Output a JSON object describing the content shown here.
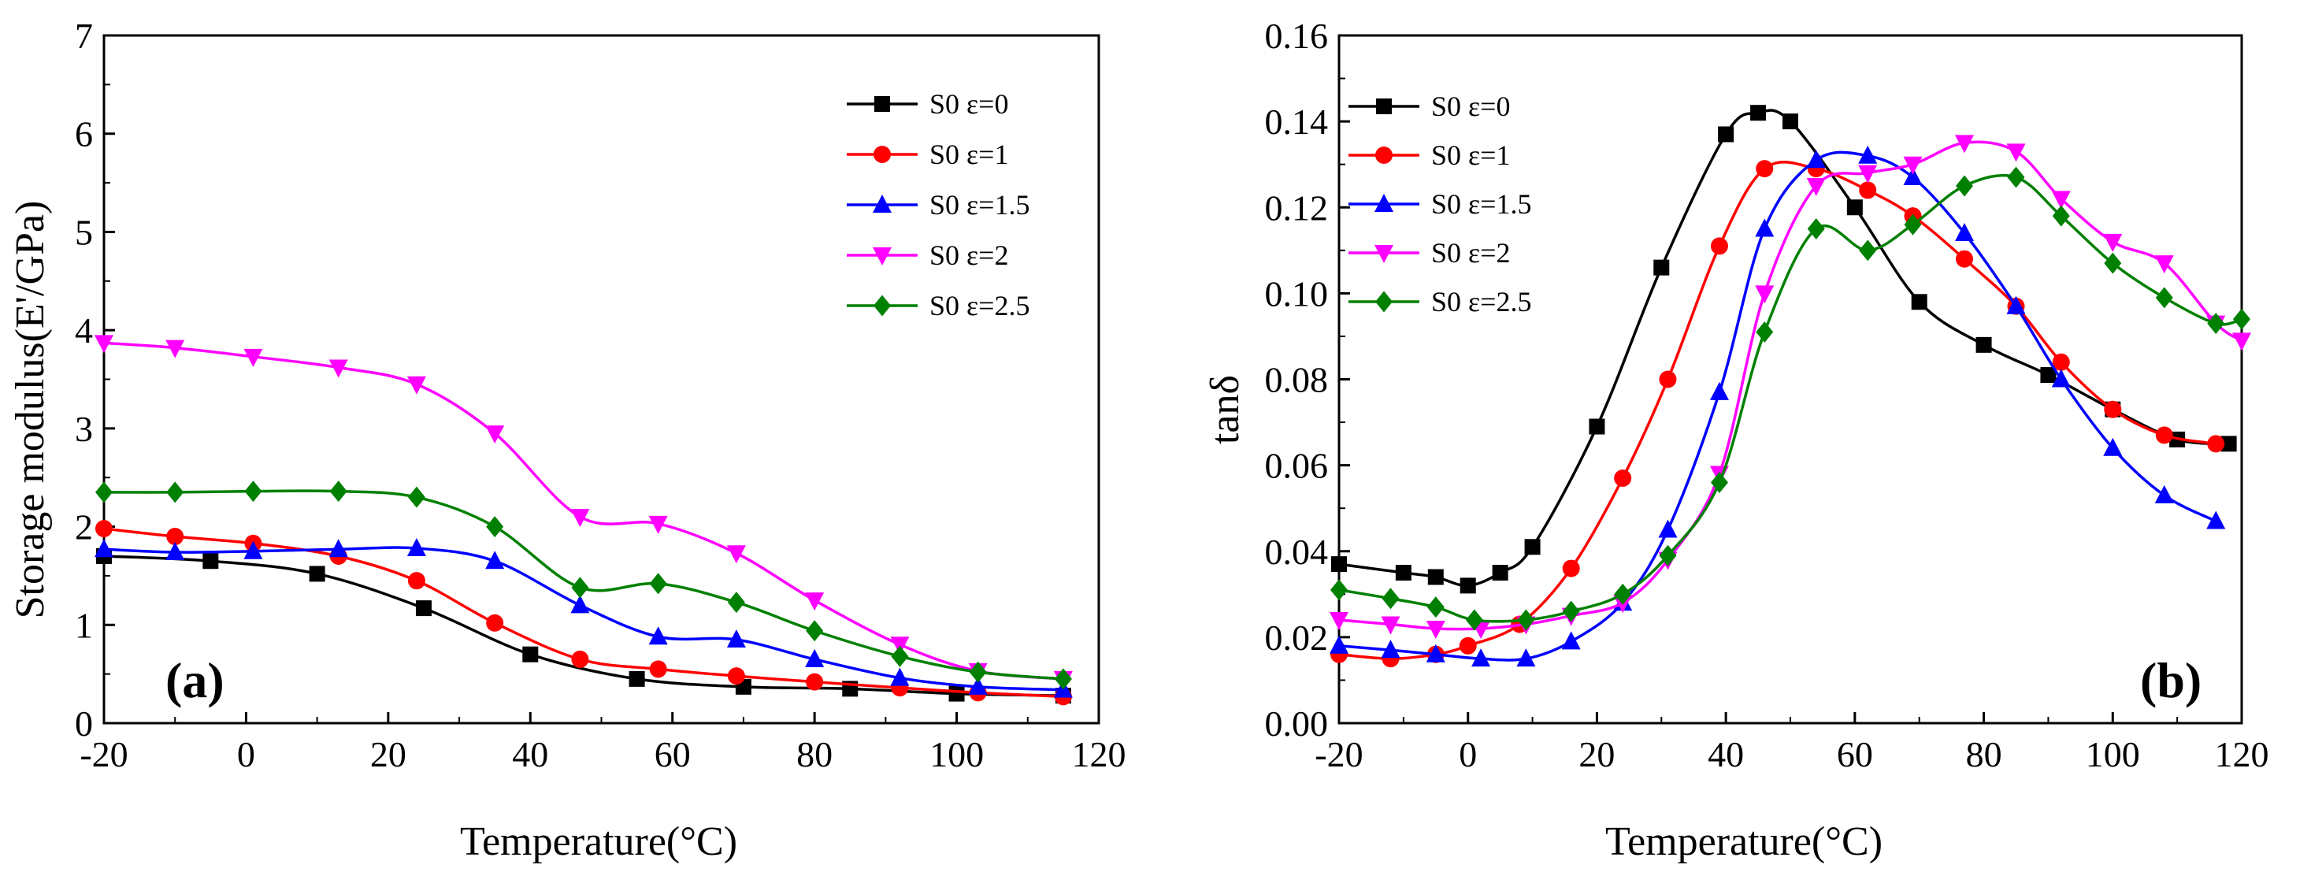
{
  "chart_data": [
    {
      "type": "line",
      "panel_label": "(a)",
      "xlabel": "Temperature(°C)",
      "ylabel": "Storage modulus(E'/GPa)",
      "xlim": [
        -20,
        120
      ],
      "ylim": [
        0,
        7
      ],
      "xticks": [
        -20,
        0,
        20,
        40,
        60,
        80,
        100,
        120
      ],
      "yticks": [
        0,
        1,
        2,
        3,
        4,
        5,
        6,
        7
      ],
      "xtick_labels": [
        "-20",
        "0",
        "20",
        "40",
        "60",
        "80",
        "100",
        "120"
      ],
      "ytick_labels": [
        "0",
        "1",
        "2",
        "3",
        "4",
        "5",
        "6",
        "7"
      ],
      "legend_position": "top-right",
      "series": [
        {
          "name": "S0 ε=0",
          "color": "#000000",
          "marker": "square",
          "x": [
            -20,
            -5,
            10,
            25,
            40,
            55,
            70,
            85,
            100,
            115
          ],
          "y": [
            1.7,
            1.65,
            1.52,
            1.17,
            0.7,
            0.45,
            0.37,
            0.35,
            0.3,
            0.28
          ]
        },
        {
          "name": "S0 ε=1",
          "color": "#ff0000",
          "marker": "circle",
          "x": [
            -20,
            -10,
            1,
            13,
            24,
            35,
            47,
            58,
            69,
            80,
            92,
            103,
            115
          ],
          "y": [
            1.98,
            1.9,
            1.83,
            1.7,
            1.45,
            1.02,
            0.65,
            0.55,
            0.48,
            0.42,
            0.36,
            0.31,
            0.27
          ]
        },
        {
          "name": "S0 ε=1.5",
          "color": "#0000ff",
          "marker": "triangle-up",
          "x": [
            -20,
            -10,
            1,
            13,
            24,
            35,
            47,
            58,
            69,
            80,
            92,
            103,
            115
          ],
          "y": [
            1.77,
            1.74,
            1.75,
            1.77,
            1.78,
            1.65,
            1.2,
            0.88,
            0.85,
            0.65,
            0.46,
            0.37,
            0.34
          ]
        },
        {
          "name": "S0 ε=2",
          "color": "#ff00ff",
          "marker": "triangle-down",
          "x": [
            -20,
            -10,
            1,
            13,
            24,
            35,
            47,
            58,
            69,
            80,
            92,
            103,
            115
          ],
          "y": [
            3.87,
            3.82,
            3.73,
            3.62,
            3.45,
            2.95,
            2.1,
            2.03,
            1.73,
            1.25,
            0.8,
            0.53,
            0.45
          ]
        },
        {
          "name": "S0 ε=2.5",
          "color": "#008000",
          "marker": "diamond",
          "x": [
            -20,
            -10,
            1,
            13,
            24,
            35,
            47,
            58,
            69,
            80,
            92,
            103,
            115
          ],
          "y": [
            2.35,
            2.35,
            2.36,
            2.36,
            2.3,
            2.0,
            1.38,
            1.42,
            1.23,
            0.94,
            0.68,
            0.52,
            0.45
          ]
        }
      ]
    },
    {
      "type": "line",
      "panel_label": "(b)",
      "xlabel": "Temperature(°C)",
      "ylabel": "tanδ",
      "xlim": [
        -20,
        120
      ],
      "ylim": [
        0,
        0.16
      ],
      "xticks": [
        -20,
        0,
        20,
        40,
        60,
        80,
        100,
        120
      ],
      "yticks": [
        0,
        0.02,
        0.04,
        0.06,
        0.08,
        0.1,
        0.12,
        0.14,
        0.16
      ],
      "xtick_labels": [
        "-20",
        "0",
        "20",
        "40",
        "60",
        "80",
        "100",
        "120"
      ],
      "ytick_labels": [
        "0.00",
        "0.02",
        "0.04",
        "0.06",
        "0.08",
        "0.10",
        "0.12",
        "0.14",
        "0.16"
      ],
      "legend_position": "top-left",
      "series": [
        {
          "name": "S0 ε=0",
          "color": "#000000",
          "marker": "square",
          "x": [
            -20,
            -10,
            -5,
            0,
            5,
            10,
            20,
            30,
            40,
            45,
            50,
            60,
            70,
            80,
            90,
            100,
            110,
            118
          ],
          "y": [
            0.037,
            0.035,
            0.034,
            0.032,
            0.035,
            0.041,
            0.069,
            0.106,
            0.137,
            0.142,
            0.14,
            0.12,
            0.098,
            0.088,
            0.081,
            0.073,
            0.066,
            0.065
          ]
        },
        {
          "name": "S0 ε=1",
          "color": "#ff0000",
          "marker": "circle",
          "x": [
            -20,
            -12,
            -5,
            0,
            8,
            16,
            24,
            31,
            39,
            46,
            54,
            62,
            69,
            77,
            85,
            92,
            100,
            108,
            116
          ],
          "y": [
            0.016,
            0.015,
            0.016,
            0.018,
            0.023,
            0.036,
            0.057,
            0.08,
            0.111,
            0.129,
            0.129,
            0.124,
            0.118,
            0.108,
            0.097,
            0.084,
            0.073,
            0.067,
            0.065
          ]
        },
        {
          "name": "S0 ε=1.5",
          "color": "#0000ff",
          "marker": "triangle-up",
          "x": [
            -20,
            -12,
            -5,
            2,
            9,
            16,
            24,
            31,
            39,
            46,
            54,
            62,
            69,
            77,
            85,
            92,
            100,
            108,
            116
          ],
          "y": [
            0.018,
            0.017,
            0.016,
            0.015,
            0.015,
            0.019,
            0.028,
            0.045,
            0.077,
            0.115,
            0.131,
            0.132,
            0.127,
            0.114,
            0.097,
            0.08,
            0.064,
            0.053,
            0.047
          ]
        },
        {
          "name": "S0 ε=2",
          "color": "#ff00ff",
          "marker": "triangle-down",
          "x": [
            -20,
            -12,
            -5,
            2,
            9,
            16,
            24,
            31,
            39,
            46,
            54,
            62,
            69,
            77,
            85,
            92,
            100,
            108,
            116,
            120
          ],
          "y": [
            0.024,
            0.023,
            0.022,
            0.022,
            0.023,
            0.025,
            0.028,
            0.038,
            0.058,
            0.1,
            0.125,
            0.128,
            0.13,
            0.135,
            0.133,
            0.122,
            0.112,
            0.107,
            0.093,
            0.089
          ]
        },
        {
          "name": "S0 ε=2.5",
          "color": "#008000",
          "marker": "diamond",
          "x": [
            -20,
            -12,
            -5,
            1,
            9,
            16,
            24,
            31,
            39,
            46,
            54,
            62,
            69,
            77,
            85,
            92,
            100,
            108,
            116,
            120
          ],
          "y": [
            0.031,
            0.029,
            0.027,
            0.024,
            0.024,
            0.026,
            0.03,
            0.039,
            0.056,
            0.091,
            0.115,
            0.11,
            0.116,
            0.125,
            0.127,
            0.118,
            0.107,
            0.099,
            0.093,
            0.094
          ]
        }
      ]
    }
  ]
}
